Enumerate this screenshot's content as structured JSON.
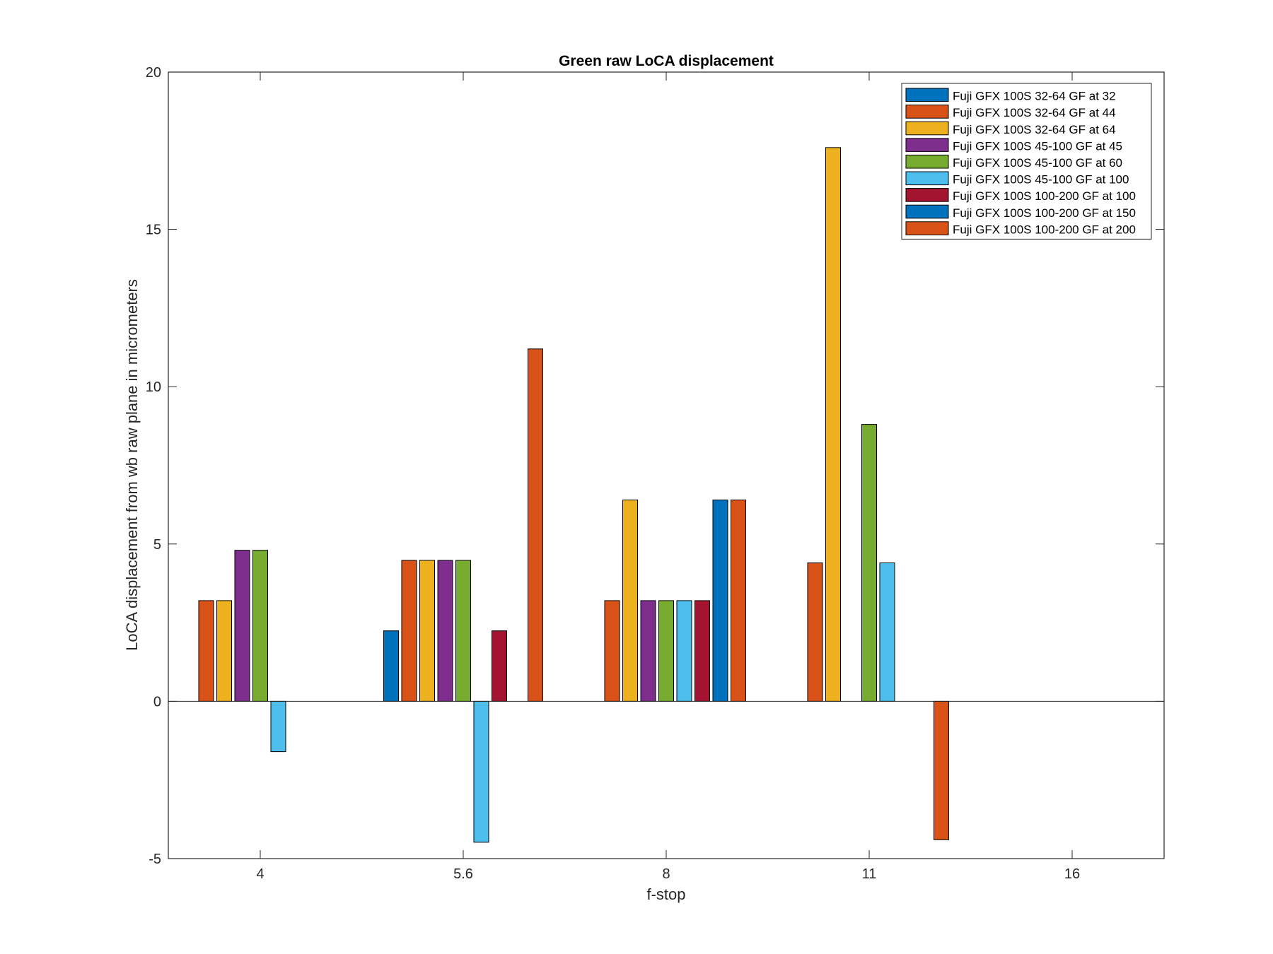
{
  "chart_data": {
    "type": "bar",
    "title": "Green raw  LoCA displacement",
    "xlabel": "f-stop",
    "ylabel": "LoCA displacement from wb raw plane in micrometers",
    "categories": [
      "4",
      "5.6",
      "8",
      "11",
      "16"
    ],
    "ylim": [
      -5,
      20
    ],
    "yticks": [
      "-5",
      "0",
      "5",
      "10",
      "15",
      "20"
    ],
    "grid": false,
    "legend_position": "top-right",
    "series": [
      {
        "name": "Fuji GFX 100S 32-64 GF at 32",
        "color": "#0072BD",
        "values": [
          0,
          2.24,
          0,
          0,
          0
        ]
      },
      {
        "name": "Fuji GFX 100S 32-64 GF at 44",
        "color": "#D95319",
        "values": [
          3.2,
          4.48,
          3.2,
          4.4,
          0
        ]
      },
      {
        "name": "Fuji GFX 100S 32-64 GF at 64",
        "color": "#EDB120",
        "values": [
          3.2,
          4.48,
          6.4,
          17.6,
          0
        ]
      },
      {
        "name": "Fuji GFX 100S 45-100 GF at 45",
        "color": "#7E2F8E",
        "values": [
          4.8,
          4.48,
          3.2,
          0,
          0
        ]
      },
      {
        "name": "Fuji GFX 100S 45-100 GF at 60",
        "color": "#77AC30",
        "values": [
          4.8,
          4.48,
          3.2,
          8.8,
          0
        ]
      },
      {
        "name": "Fuji GFX 100S 45-100 GF at 100",
        "color": "#4DBEEE",
        "values": [
          -1.6,
          -4.48,
          3.2,
          4.4,
          0
        ]
      },
      {
        "name": "Fuji GFX 100S 100-200 GF at 100",
        "color": "#A2142F",
        "values": [
          0,
          2.24,
          3.2,
          0,
          0
        ]
      },
      {
        "name": "Fuji GFX 100S 100-200 GF at 150",
        "color": "#0072BD",
        "values": [
          0,
          0,
          6.4,
          0,
          0
        ]
      },
      {
        "name": "Fuji GFX 100S 100-200 GF at 200",
        "color": "#D95319",
        "values": [
          0,
          11.2,
          6.4,
          -4.4,
          0
        ]
      }
    ]
  }
}
